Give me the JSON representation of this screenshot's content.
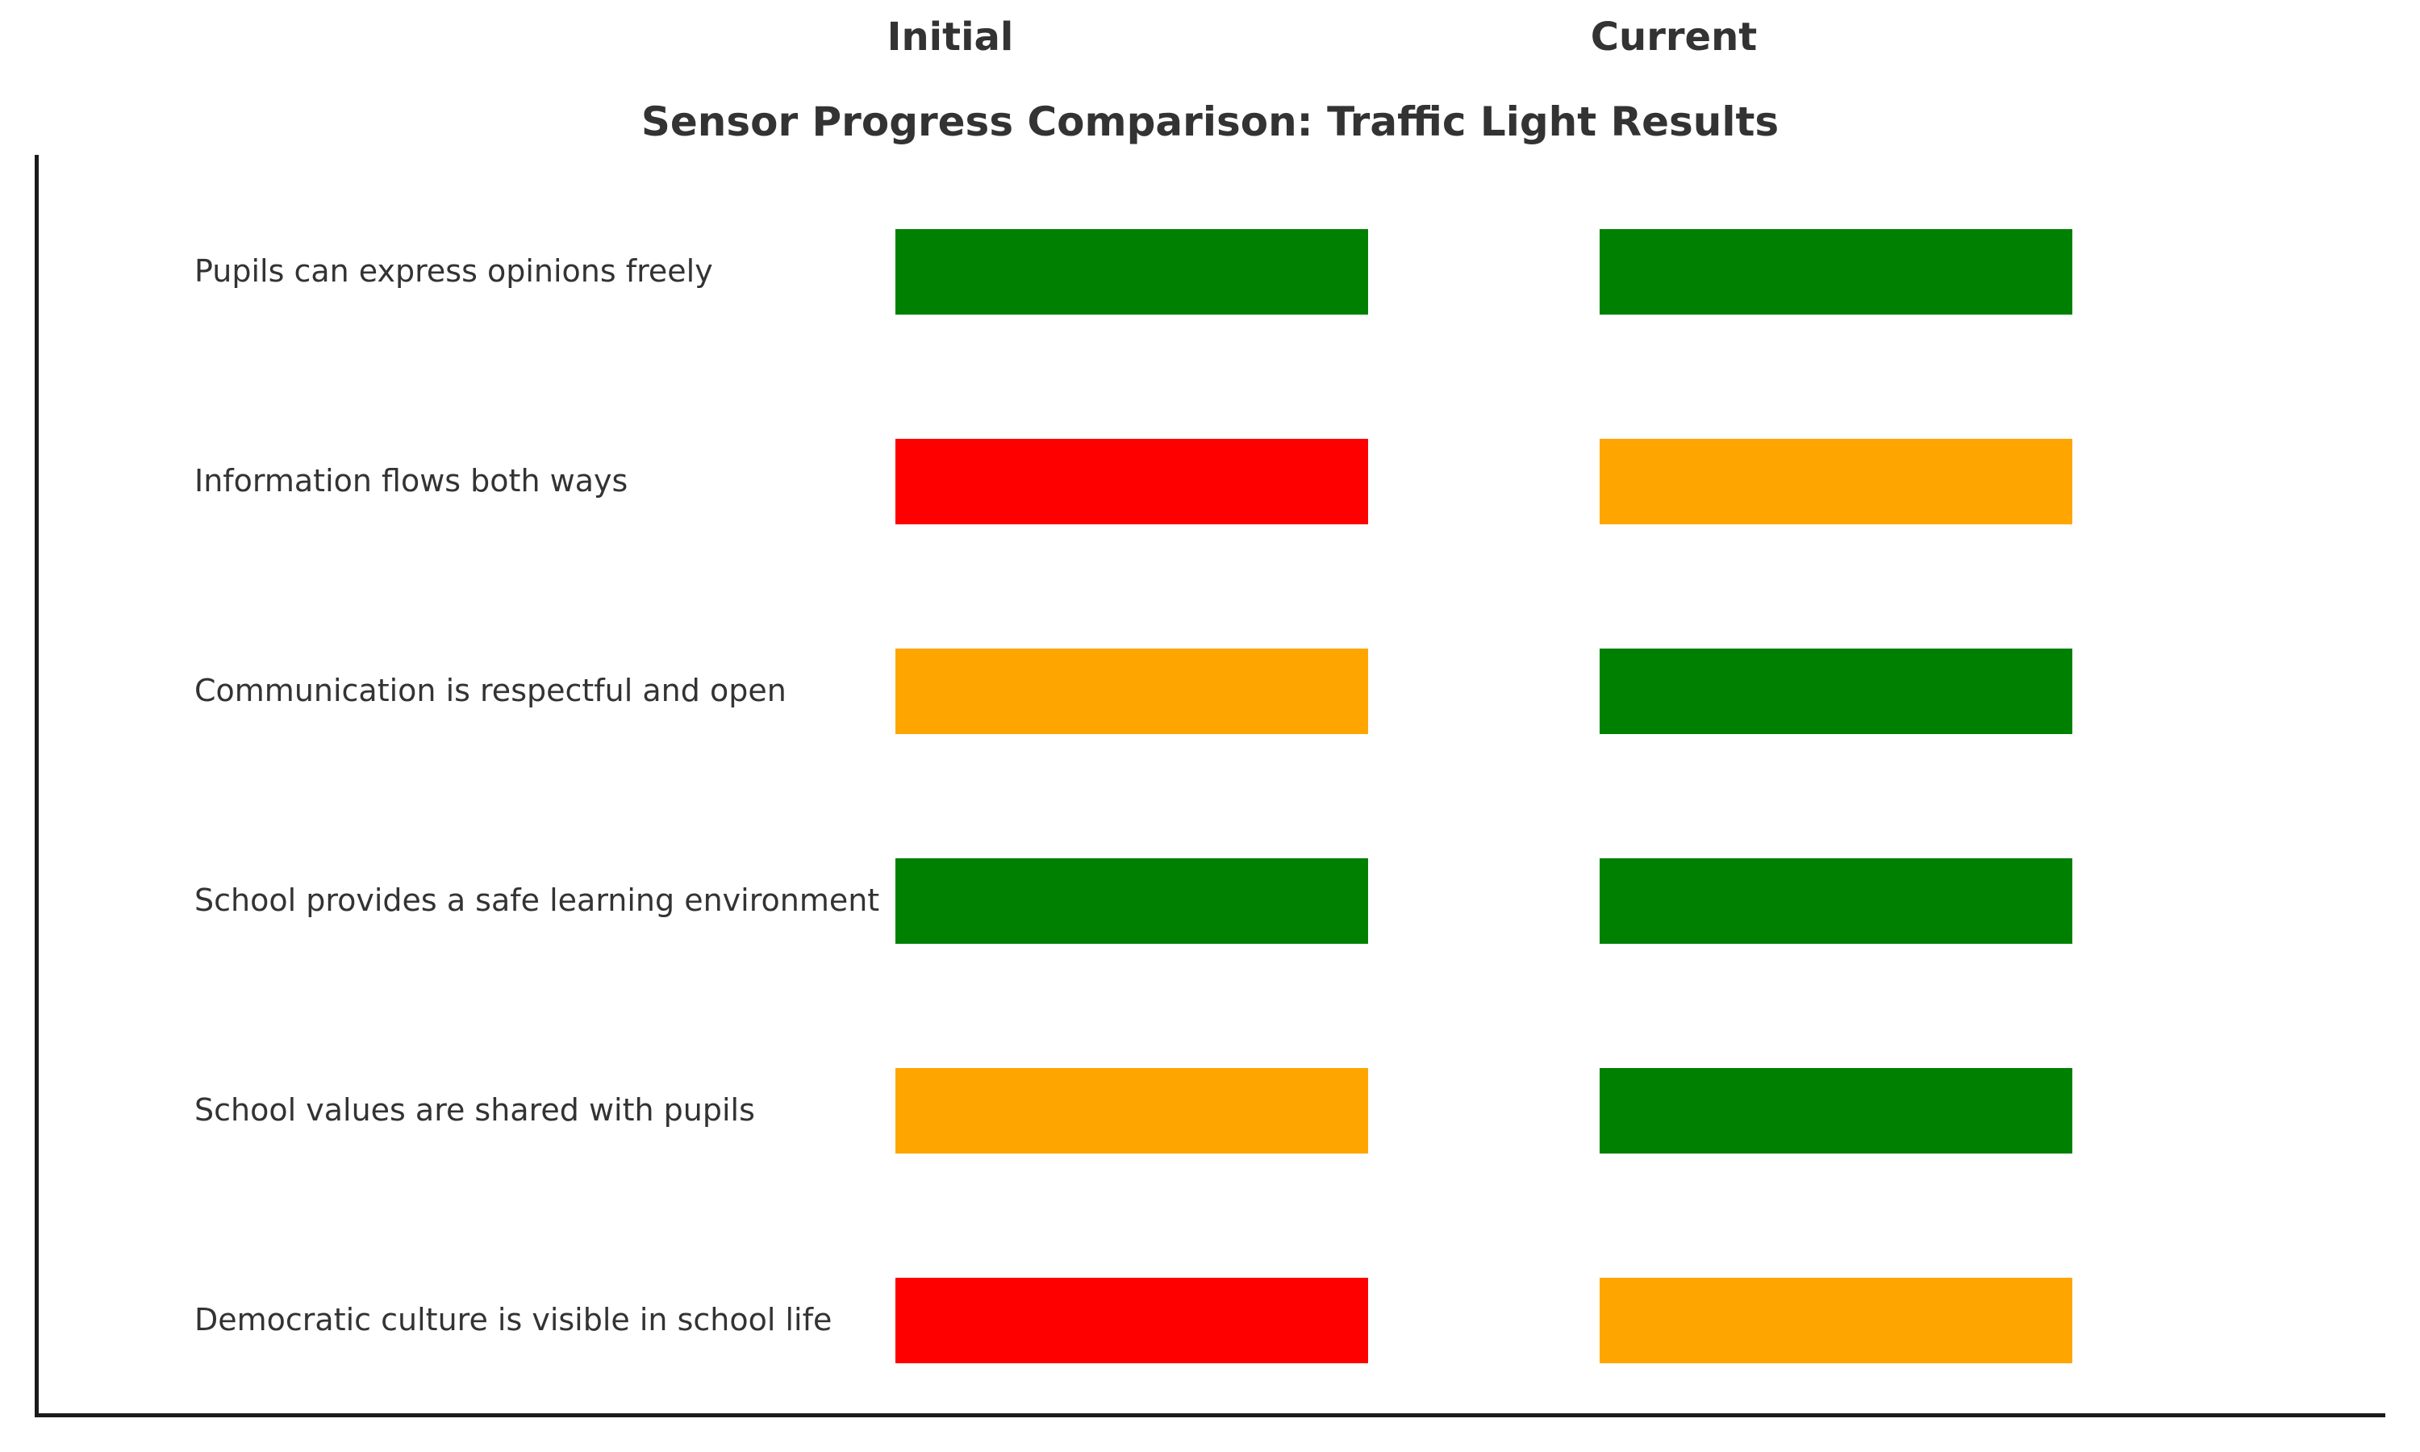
{
  "page": {
    "background": "#ffffff"
  },
  "colors": {
    "text": "#333333",
    "spine": "#1a1a1a"
  },
  "chart_data": {
    "type": "heatmap",
    "title": "Sensor Progress Comparison: Traffic Light Results",
    "columns": [
      "Initial",
      "Current"
    ],
    "categories": [
      "Pupils can express opinions freely",
      "Information flows both ways",
      "Communication is respectful and open",
      "School provides a safe learning environment",
      "School values are shared with pupils",
      "Democratic culture is visible in school life"
    ],
    "series": [
      {
        "name": "Initial",
        "values": [
          "green",
          "red",
          "orange",
          "green",
          "orange",
          "red"
        ]
      },
      {
        "name": "Current",
        "values": [
          "green",
          "orange",
          "green",
          "green",
          "green",
          "orange"
        ]
      }
    ],
    "status_colors": {
      "green": "#008000",
      "orange": "#FFA500",
      "red": "#FF0000"
    },
    "legend": "none",
    "grid": false,
    "axes": {
      "left_spine": true,
      "bottom_spine": true,
      "top_spine": false,
      "right_spine": false
    }
  }
}
